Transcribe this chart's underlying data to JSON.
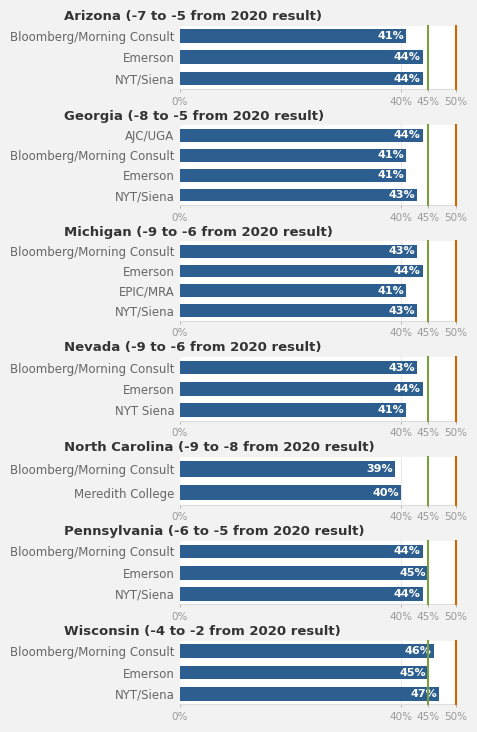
{
  "groups": [
    {
      "title": "Arizona (-7 to -5 from 2020 result)",
      "polls": [
        {
          "label": "Bloomberg/Morning Consult",
          "value": 41
        },
        {
          "label": "Emerson",
          "value": 44
        },
        {
          "label": "NYT/Siena",
          "value": 44
        }
      ],
      "green_line": 45,
      "orange_line": 50
    },
    {
      "title": "Georgia (-8 to -5 from 2020 result)",
      "polls": [
        {
          "label": "AJC/UGA",
          "value": 44
        },
        {
          "label": "Bloomberg/Morning Consult",
          "value": 41
        },
        {
          "label": "Emerson",
          "value": 41
        },
        {
          "label": "NYT/Siena",
          "value": 43
        }
      ],
      "green_line": 45,
      "orange_line": 50
    },
    {
      "title": "Michigan (-9 to -6 from 2020 result)",
      "polls": [
        {
          "label": "Bloomberg/Morning Consult",
          "value": 43
        },
        {
          "label": "Emerson",
          "value": 44
        },
        {
          "label": "EPIC/MRA",
          "value": 41
        },
        {
          "label": "NYT/Siena",
          "value": 43
        }
      ],
      "green_line": 45,
      "orange_line": 50
    },
    {
      "title": "Nevada (-9 to -6 from 2020 result)",
      "polls": [
        {
          "label": "Bloomberg/Morning Consult",
          "value": 43
        },
        {
          "label": "Emerson",
          "value": 44
        },
        {
          "label": "NYT Siena",
          "value": 41
        }
      ],
      "green_line": 45,
      "orange_line": 50
    },
    {
      "title": "North Carolina (-9 to -8 from 2020 result)",
      "polls": [
        {
          "label": "Bloomberg/Morning Consult",
          "value": 39
        },
        {
          "label": "Meredith College",
          "value": 40
        }
      ],
      "green_line": 45,
      "orange_line": 50
    },
    {
      "title": "Pennsylvania (-6 to -5 from 2020 result)",
      "polls": [
        {
          "label": "Bloomberg/Morning Consult",
          "value": 44
        },
        {
          "label": "Emerson",
          "value": 45
        },
        {
          "label": "NYT/Siena",
          "value": 44
        }
      ],
      "green_line": 45,
      "orange_line": 50
    },
    {
      "title": "Wisconsin (-4 to -2 from 2020 result)",
      "polls": [
        {
          "label": "Bloomberg/Morning Consult",
          "value": 46
        },
        {
          "label": "Emerson",
          "value": 45
        },
        {
          "label": "NYT/Siena",
          "value": 47
        }
      ],
      "green_line": 45,
      "orange_line": 50
    }
  ],
  "bar_color": "#2C5F8F",
  "bar_height": 0.65,
  "xlim": [
    0,
    50
  ],
  "xticks": [
    0,
    40,
    45,
    50
  ],
  "xticklabels": [
    "0%",
    "40%",
    "45%",
    "50%"
  ],
  "background_color": "#F2F2F2",
  "axes_background": "#FFFFFF",
  "title_fontsize": 9.5,
  "label_fontsize": 8.5,
  "value_fontsize": 8,
  "tick_fontsize": 7.5,
  "green_color": "#7B9E3E",
  "orange_color": "#CC6600"
}
